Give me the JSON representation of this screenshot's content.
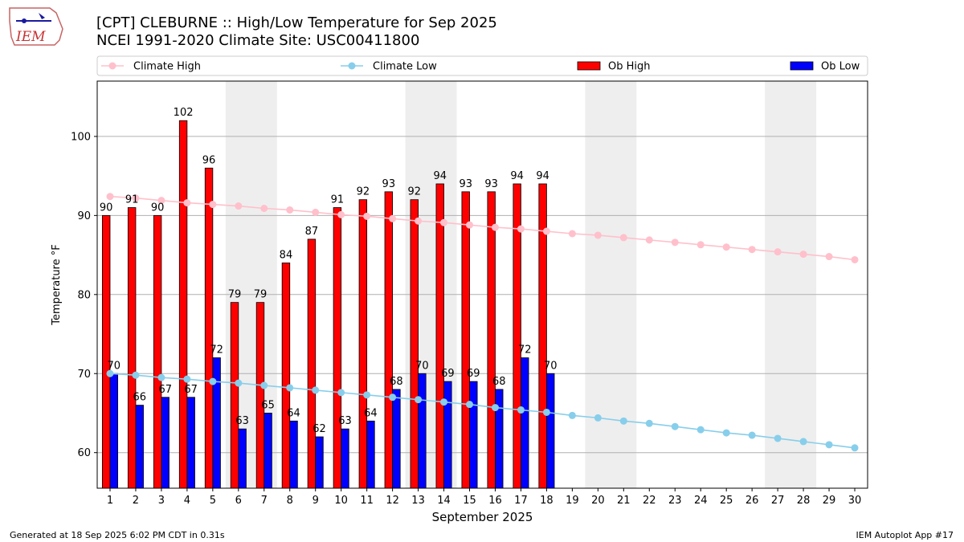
{
  "header": {
    "title_line1": "[CPT] CLEBURNE :: High/Low Temperature for Sep 2025",
    "title_line2": "NCEI 1991-2020 Climate Site: USC00411800"
  },
  "logo": {
    "text": "IEM"
  },
  "footer": {
    "left": "Generated at 18 Sep 2025 6:02 PM CDT in 0.31s",
    "right": "IEM Autoplot App #17"
  },
  "colors": {
    "ob_high": "#ff0000",
    "ob_low": "#0000ff",
    "climate_high": "#ffc0cb",
    "climate_low": "#87ceeb",
    "weekend_band": "#eeeeee",
    "grid": "#b0b0b0"
  },
  "chart_data": {
    "type": "bar",
    "xlabel": "September 2025",
    "ylabel": "Temperature °F",
    "xlim": [
      0.5,
      30.5
    ],
    "ylim": [
      55.5,
      107
    ],
    "yticks": [
      60,
      70,
      80,
      90,
      100
    ],
    "grid": "horizontal",
    "legend_position": "top",
    "weekend_bands": [
      [
        6,
        7
      ],
      [
        13,
        14
      ],
      [
        20,
        21
      ],
      [
        27,
        28
      ]
    ],
    "days": [
      1,
      2,
      3,
      4,
      5,
      6,
      7,
      8,
      9,
      10,
      11,
      12,
      13,
      14,
      15,
      16,
      17,
      18,
      19,
      20,
      21,
      22,
      23,
      24,
      25,
      26,
      27,
      28,
      29,
      30
    ],
    "series": [
      {
        "name": "Climate High",
        "kind": "line",
        "values": [
          92.4,
          92.2,
          91.9,
          91.6,
          91.4,
          91.2,
          90.9,
          90.7,
          90.4,
          90.1,
          89.9,
          89.6,
          89.3,
          89.1,
          88.8,
          88.5,
          88.3,
          88.0,
          87.7,
          87.5,
          87.2,
          86.9,
          86.6,
          86.3,
          86.0,
          85.7,
          85.4,
          85.1,
          84.8,
          84.4
        ]
      },
      {
        "name": "Climate Low",
        "kind": "line",
        "values": [
          70.0,
          69.8,
          69.5,
          69.3,
          69.0,
          68.8,
          68.5,
          68.2,
          67.9,
          67.6,
          67.3,
          67.0,
          66.7,
          66.4,
          66.1,
          65.7,
          65.4,
          65.1,
          64.7,
          64.4,
          64.0,
          63.7,
          63.3,
          62.9,
          62.5,
          62.2,
          61.8,
          61.4,
          61.0,
          60.6
        ]
      },
      {
        "name": "Ob High",
        "kind": "bar",
        "values": [
          90,
          91,
          90,
          102,
          96,
          79,
          79,
          84,
          87,
          91,
          92,
          93,
          92,
          94,
          93,
          93,
          94,
          94
        ]
      },
      {
        "name": "Ob Low",
        "kind": "bar",
        "values": [
          70,
          66,
          67,
          67,
          72,
          63,
          65,
          64,
          62,
          63,
          64,
          68,
          70,
          69,
          69,
          68,
          72,
          70
        ]
      }
    ]
  }
}
